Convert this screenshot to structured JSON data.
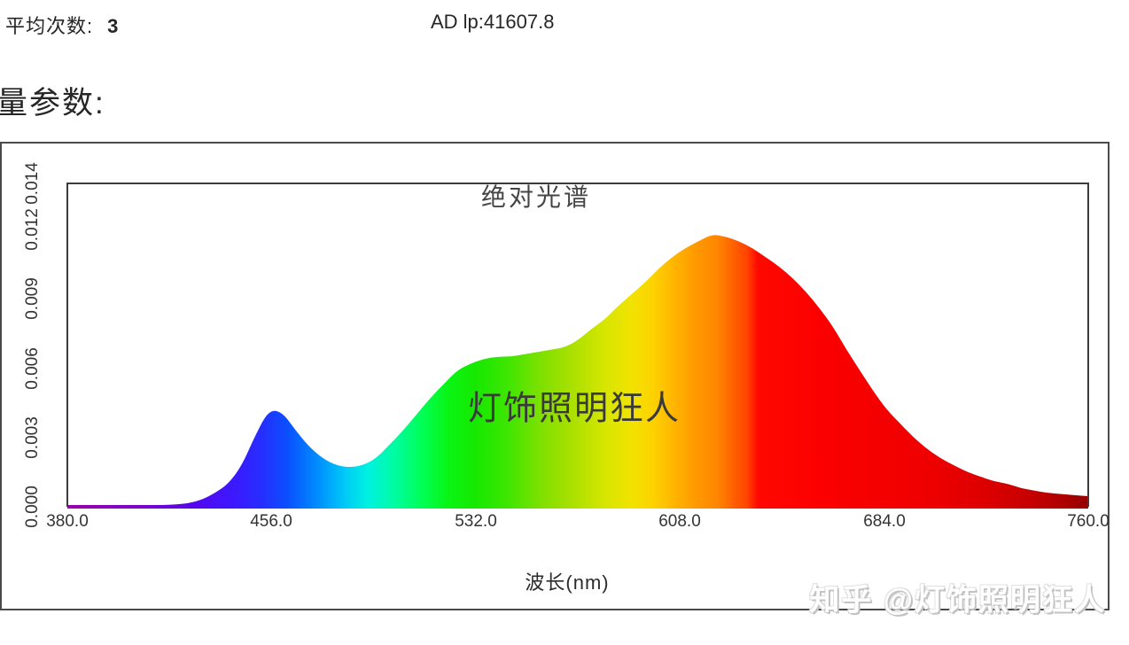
{
  "header": {
    "avg_label": "平均次数:",
    "avg_value": "3",
    "ad_value": "AD lp:41607.8"
  },
  "section": {
    "params_label": "量参数:"
  },
  "watermarks": {
    "center": "灯饰照明狂人",
    "bottom_right": "知乎 @灯饰照明狂人"
  },
  "colors": {
    "frame": "#4a4a4a",
    "axis": "#3c3c3c",
    "text": "#262626",
    "title": "#454545",
    "center_watermark": "#3a3a3a",
    "zhihu_watermark_shadow": "#c3c3c3"
  },
  "chart_data": {
    "type": "area",
    "title": "绝对光谱",
    "xlabel": "波长(nm)",
    "ylabel": "",
    "xlim": [
      380,
      760
    ],
    "ylim": [
      0,
      0.014
    ],
    "grid": false,
    "legend": "none",
    "fill": "spectral-wavelength-gradient",
    "x_ticks": [
      "380.0",
      "456.0",
      "532.0",
      "608.0",
      "684.0",
      "760.0"
    ],
    "y_ticks": [
      "0.000",
      "0.003",
      "0.006",
      "0.009",
      "0.012",
      "0.014"
    ],
    "x_tick_values": [
      380,
      456,
      532,
      608,
      684,
      760
    ],
    "y_tick_values": [
      0,
      0.003,
      0.006,
      0.009,
      0.012,
      0.014
    ],
    "features": {
      "blue_peak": {
        "wavelength": 455,
        "value": 0.0042
      },
      "trough": {
        "wavelength": 485,
        "value": 0.0017
      },
      "main_peak": {
        "wavelength": 620,
        "value": 0.0118
      }
    },
    "series": [
      {
        "name": "绝对光谱",
        "x": [
          380,
          385,
          390,
          395,
          400,
          405,
          410,
          415,
          420,
          425,
          430,
          435,
          440,
          445,
          450,
          455,
          460,
          465,
          470,
          475,
          480,
          485,
          490,
          495,
          500,
          505,
          510,
          515,
          520,
          525,
          530,
          535,
          540,
          545,
          550,
          555,
          560,
          565,
          570,
          575,
          580,
          585,
          590,
          595,
          600,
          605,
          610,
          615,
          620,
          625,
          630,
          635,
          640,
          645,
          650,
          655,
          660,
          665,
          670,
          675,
          680,
          685,
          690,
          695,
          700,
          705,
          710,
          715,
          720,
          725,
          730,
          735,
          740,
          745,
          750,
          755,
          760
        ],
        "y": [
          2e-05,
          2e-05,
          3e-05,
          3e-05,
          4e-05,
          5e-05,
          6e-05,
          8e-05,
          0.0001,
          0.00015,
          0.0003,
          0.0006,
          0.001,
          0.0018,
          0.0031,
          0.0042,
          0.0041,
          0.0033,
          0.0026,
          0.0021,
          0.0018,
          0.0017,
          0.0018,
          0.0021,
          0.0027,
          0.0033,
          0.004,
          0.0047,
          0.0053,
          0.0059,
          0.0062,
          0.0064,
          0.0065,
          0.0065,
          0.0066,
          0.0067,
          0.0068,
          0.0069,
          0.0072,
          0.0077,
          0.0081,
          0.0087,
          0.0092,
          0.0097,
          0.0103,
          0.0108,
          0.0112,
          0.0115,
          0.0118,
          0.0117,
          0.0115,
          0.0112,
          0.0108,
          0.0104,
          0.0099,
          0.0093,
          0.0086,
          0.0078,
          0.0068,
          0.0059,
          0.005,
          0.0042,
          0.0036,
          0.003,
          0.0025,
          0.0021,
          0.0018,
          0.0015,
          0.0013,
          0.0011,
          0.001,
          0.0008,
          0.0007,
          0.0006,
          0.00055,
          0.0005,
          0.00046
        ]
      }
    ],
    "gradient_stops": [
      [
        380,
        "#9900aa"
      ],
      [
        408,
        "#7a00cc"
      ],
      [
        428,
        "#5408f0"
      ],
      [
        443,
        "#3a1aff"
      ],
      [
        453,
        "#2430ff"
      ],
      [
        462,
        "#0a50ff"
      ],
      [
        473,
        "#008cff"
      ],
      [
        483,
        "#00c8f8"
      ],
      [
        492,
        "#00f2e0"
      ],
      [
        502,
        "#00fca0"
      ],
      [
        512,
        "#00ff55"
      ],
      [
        522,
        "#0af514"
      ],
      [
        532,
        "#16e800"
      ],
      [
        544,
        "#3fe600"
      ],
      [
        556,
        "#7ee000"
      ],
      [
        568,
        "#abe000"
      ],
      [
        580,
        "#d6e600"
      ],
      [
        590,
        "#f2e200"
      ],
      [
        598,
        "#fdd200"
      ],
      [
        606,
        "#ffb400"
      ],
      [
        614,
        "#ff9900"
      ],
      [
        622,
        "#ff8600"
      ],
      [
        628,
        "#ff6000"
      ],
      [
        633,
        "#ff4400"
      ],
      [
        637,
        "#ff0800"
      ],
      [
        660,
        "#fb0000"
      ],
      [
        700,
        "#ef0000"
      ],
      [
        722,
        "#dc0000"
      ],
      [
        740,
        "#c30000"
      ],
      [
        752,
        "#ab0000"
      ],
      [
        760,
        "#940000"
      ]
    ]
  }
}
